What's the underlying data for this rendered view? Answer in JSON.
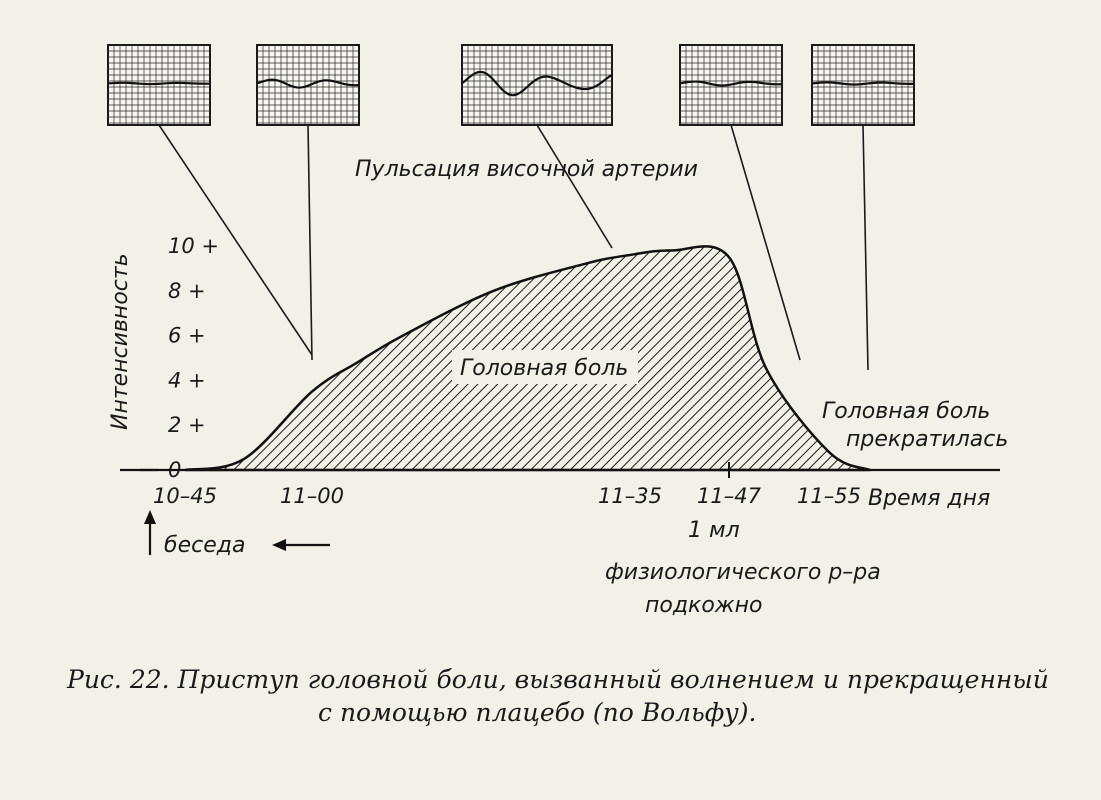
{
  "chart_data": {
    "type": "area",
    "ylabel": "Интенсивность",
    "xlabel": "Время дня",
    "ylim": [
      0,
      10
    ],
    "y_ticks": [
      "0",
      "2 +",
      "4 +",
      "6 +",
      "8 +",
      "10 +"
    ],
    "x_tick_labels": [
      "10–45",
      "11–00",
      "11–35",
      "11–47",
      "11–55"
    ],
    "series": [
      {
        "name": "Головная боль",
        "x": [
          "10–45",
          "10–52",
          "11–00",
          "11–05",
          "11–10",
          "11–20",
          "11–30",
          "11–35",
          "11–40",
          "11–47",
          "11–50",
          "11–55",
          "11–58"
        ],
        "values": [
          0,
          0.5,
          3.5,
          4.8,
          6.0,
          8.0,
          9.2,
          9.6,
          9.8,
          9.5,
          4.5,
          0.8,
          0
        ]
      }
    ],
    "pulse_panels": [
      {
        "time": "10–45",
        "amplitude": 0.05
      },
      {
        "time": "11–00",
        "amplitude": 0.3
      },
      {
        "time": "11–35",
        "amplitude": 0.9
      },
      {
        "time": "11–47",
        "amplitude": 0.15
      },
      {
        "time": "11–55",
        "amplitude": 0.08
      }
    ],
    "annotations": {
      "pulse_label": "Пульсация височной артерии",
      "headache_label": "Головная боль",
      "stopped_line1": "Головная боль",
      "stopped_line2": "прекратилась",
      "talk_label": "беседа",
      "injection_line1": "1 мл",
      "injection_line2": "физиологического р–ра",
      "injection_line3": "подкожно"
    }
  },
  "caption": {
    "line1": "Рис. 22. Приступ головной боли, вызванный волнением и прекращенный",
    "line2": "с помощью плацебо (по Вольфу)."
  }
}
